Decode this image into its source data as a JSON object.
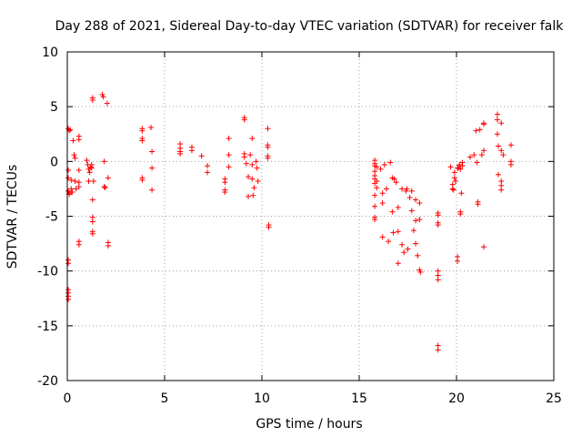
{
  "chart_data": {
    "type": "scatter",
    "title": "Day 288 of 2021, Sidereal Day-to-day VTEC variation (SDTVAR) for receiver falk",
    "xlabel": "GPS time / hours",
    "ylabel": "SDTVAR / TECUs",
    "xlim": [
      0,
      25
    ],
    "ylim": [
      -20,
      10
    ],
    "xticks": [
      0,
      5,
      10,
      15,
      20,
      25
    ],
    "yticks": [
      -20,
      -15,
      -10,
      -5,
      0,
      5,
      10
    ],
    "xtick_labels": [
      "0",
      "5",
      "10",
      "15",
      "20",
      "25"
    ],
    "ytick_labels": [
      "-20",
      "-15",
      "-10",
      "-5",
      "0",
      "5",
      "10"
    ],
    "grid": true,
    "marker": "plus",
    "series": [
      {
        "name": "SDTVAR",
        "color": "#ff0000",
        "points": [
          [
            0.05,
            3.0
          ],
          [
            0.1,
            2.8
          ],
          [
            0.15,
            2.9
          ],
          [
            0.05,
            -0.8
          ],
          [
            0.05,
            -1.5
          ],
          [
            0.05,
            -2.7
          ],
          [
            0.1,
            -3.0
          ],
          [
            0.1,
            -2.9
          ],
          [
            0.05,
            -9.0
          ],
          [
            0.05,
            -9.3
          ],
          [
            0.05,
            -11.7
          ],
          [
            0.05,
            -12.0
          ],
          [
            0.05,
            -12.3
          ],
          [
            0.05,
            -12.6
          ],
          [
            0.2,
            -1.7
          ],
          [
            0.2,
            -2.5
          ],
          [
            0.25,
            -2.8
          ],
          [
            0.3,
            1.9
          ],
          [
            0.35,
            0.6
          ],
          [
            0.4,
            0.3
          ],
          [
            0.4,
            -1.8
          ],
          [
            0.45,
            -2.5
          ],
          [
            0.6,
            -2.3
          ],
          [
            0.6,
            -1.9
          ],
          [
            0.6,
            -7.3
          ],
          [
            0.6,
            -7.6
          ],
          [
            0.6,
            2.3
          ],
          [
            0.6,
            2.0
          ],
          [
            0.6,
            -0.8
          ],
          [
            1.0,
            0.1
          ],
          [
            1.05,
            -0.3
          ],
          [
            1.1,
            -0.7
          ],
          [
            1.1,
            -1.8
          ],
          [
            1.15,
            -1.0
          ],
          [
            1.2,
            -0.5
          ],
          [
            1.25,
            -0.3
          ],
          [
            1.25,
            -0.6
          ],
          [
            1.3,
            5.8
          ],
          [
            1.3,
            5.6
          ],
          [
            1.3,
            -3.5
          ],
          [
            1.3,
            -5.1
          ],
          [
            1.3,
            -5.5
          ],
          [
            1.3,
            -6.4
          ],
          [
            1.3,
            -6.6
          ],
          [
            1.35,
            -1.8
          ],
          [
            1.8,
            6.1
          ],
          [
            1.85,
            5.9
          ],
          [
            1.9,
            0.0
          ],
          [
            1.9,
            -2.3
          ],
          [
            1.95,
            -2.4
          ],
          [
            2.05,
            5.3
          ],
          [
            2.1,
            -1.5
          ],
          [
            2.1,
            -7.4
          ],
          [
            2.1,
            -7.7
          ],
          [
            3.85,
            3.0
          ],
          [
            3.85,
            2.8
          ],
          [
            3.85,
            2.1
          ],
          [
            3.85,
            1.9
          ],
          [
            3.85,
            -1.5
          ],
          [
            3.85,
            -1.7
          ],
          [
            4.3,
            3.1
          ],
          [
            4.35,
            0.9
          ],
          [
            4.35,
            -0.6
          ],
          [
            4.35,
            -2.6
          ],
          [
            5.8,
            1.6
          ],
          [
            5.8,
            1.2
          ],
          [
            5.8,
            0.9
          ],
          [
            5.8,
            0.7
          ],
          [
            6.4,
            1.3
          ],
          [
            6.4,
            1.0
          ],
          [
            6.9,
            0.5
          ],
          [
            7.2,
            -0.4
          ],
          [
            7.2,
            -1.0
          ],
          [
            8.1,
            -1.6
          ],
          [
            8.1,
            -1.9
          ],
          [
            8.1,
            -2.6
          ],
          [
            8.1,
            -2.8
          ],
          [
            8.3,
            2.1
          ],
          [
            8.3,
            -0.5
          ],
          [
            8.3,
            0.6
          ],
          [
            9.1,
            4.0
          ],
          [
            9.1,
            3.8
          ],
          [
            9.1,
            0.7
          ],
          [
            9.1,
            0.4
          ],
          [
            9.2,
            -0.2
          ],
          [
            9.3,
            -1.4
          ],
          [
            9.3,
            -3.2
          ],
          [
            9.4,
            0.6
          ],
          [
            9.5,
            2.1
          ],
          [
            9.5,
            -0.3
          ],
          [
            9.5,
            -1.6
          ],
          [
            9.55,
            -3.1
          ],
          [
            9.6,
            -2.4
          ],
          [
            9.7,
            0.0
          ],
          [
            9.75,
            -0.6
          ],
          [
            9.8,
            -1.8
          ],
          [
            10.3,
            3.0
          ],
          [
            10.3,
            1.5
          ],
          [
            10.3,
            1.3
          ],
          [
            10.3,
            0.5
          ],
          [
            10.3,
            0.3
          ],
          [
            10.35,
            -5.8
          ],
          [
            10.35,
            -6.0
          ],
          [
            15.8,
            0.1
          ],
          [
            15.8,
            -0.2
          ],
          [
            15.8,
            -0.4
          ],
          [
            15.8,
            -0.9
          ],
          [
            15.8,
            -1.3
          ],
          [
            15.8,
            -1.6
          ],
          [
            15.8,
            -2.0
          ],
          [
            15.8,
            -3.1
          ],
          [
            15.8,
            -4.1
          ],
          [
            15.8,
            -5.1
          ],
          [
            15.8,
            -5.3
          ],
          [
            15.9,
            -0.5
          ],
          [
            15.9,
            -1.8
          ],
          [
            15.9,
            -2.4
          ],
          [
            16.1,
            -0.7
          ],
          [
            16.2,
            -2.9
          ],
          [
            16.2,
            -3.8
          ],
          [
            16.2,
            -6.9
          ],
          [
            16.3,
            -0.3
          ],
          [
            16.4,
            -2.5
          ],
          [
            16.5,
            -7.3
          ],
          [
            16.6,
            -0.1
          ],
          [
            16.7,
            -1.5
          ],
          [
            16.7,
            -4.6
          ],
          [
            16.75,
            -6.5
          ],
          [
            16.8,
            -1.6
          ],
          [
            16.9,
            -1.9
          ],
          [
            17.0,
            -4.2
          ],
          [
            17.0,
            -6.4
          ],
          [
            17.0,
            -9.3
          ],
          [
            17.2,
            -2.5
          ],
          [
            17.2,
            -7.6
          ],
          [
            17.3,
            -8.3
          ],
          [
            17.4,
            -2.7
          ],
          [
            17.45,
            -2.5
          ],
          [
            17.5,
            -8.0
          ],
          [
            17.6,
            -3.3
          ],
          [
            17.7,
            -2.7
          ],
          [
            17.7,
            -4.5
          ],
          [
            17.8,
            -6.3
          ],
          [
            17.9,
            -3.5
          ],
          [
            17.9,
            -5.4
          ],
          [
            17.9,
            -7.5
          ],
          [
            18.0,
            -8.6
          ],
          [
            18.1,
            -3.8
          ],
          [
            18.1,
            -5.3
          ],
          [
            18.1,
            -9.9
          ],
          [
            18.15,
            -10.1
          ],
          [
            19.05,
            -4.7
          ],
          [
            19.05,
            -4.9
          ],
          [
            19.05,
            -5.6
          ],
          [
            19.05,
            -5.8
          ],
          [
            19.05,
            -10.0
          ],
          [
            19.05,
            -10.4
          ],
          [
            19.05,
            -10.8
          ],
          [
            19.05,
            -16.8
          ],
          [
            19.05,
            -17.2
          ],
          [
            19.7,
            -0.5
          ],
          [
            19.8,
            -2.1
          ],
          [
            19.8,
            -2.5
          ],
          [
            19.85,
            -2.6
          ],
          [
            19.9,
            -1.0
          ],
          [
            19.9,
            -1.5
          ],
          [
            19.95,
            -1.8
          ],
          [
            20.05,
            -0.6
          ],
          [
            20.05,
            -8.7
          ],
          [
            20.05,
            -9.1
          ],
          [
            20.1,
            -0.6
          ],
          [
            20.15,
            -0.3
          ],
          [
            20.2,
            -0.7
          ],
          [
            20.2,
            -4.6
          ],
          [
            20.2,
            -4.8
          ],
          [
            20.25,
            -2.9
          ],
          [
            20.3,
            -0.1
          ],
          [
            20.3,
            -0.4
          ],
          [
            20.7,
            0.4
          ],
          [
            20.9,
            0.6
          ],
          [
            21.0,
            2.8
          ],
          [
            21.05,
            -0.1
          ],
          [
            21.1,
            -3.7
          ],
          [
            21.1,
            -3.9
          ],
          [
            21.2,
            2.9
          ],
          [
            21.3,
            0.6
          ],
          [
            21.4,
            3.4
          ],
          [
            21.4,
            3.5
          ],
          [
            21.4,
            1.0
          ],
          [
            21.4,
            -7.8
          ],
          [
            22.1,
            4.3
          ],
          [
            22.1,
            3.8
          ],
          [
            22.1,
            2.5
          ],
          [
            22.15,
            1.4
          ],
          [
            22.15,
            -1.2
          ],
          [
            22.3,
            3.5
          ],
          [
            22.3,
            1.0
          ],
          [
            22.3,
            -1.8
          ],
          [
            22.3,
            -2.2
          ],
          [
            22.3,
            -2.6
          ],
          [
            22.4,
            0.6
          ],
          [
            22.8,
            1.5
          ],
          [
            22.8,
            0.0
          ],
          [
            22.8,
            -0.3
          ]
        ]
      }
    ]
  }
}
